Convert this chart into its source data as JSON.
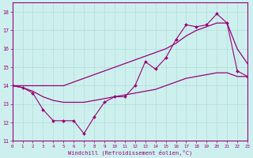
{
  "title": "",
  "xlabel": "Windchill (Refroidissement éolien,°C)",
  "background_color": "#cdf0ee",
  "grid_color": "#b0ddd8",
  "line_color": "#990077",
  "hours": [
    0,
    1,
    2,
    3,
    4,
    5,
    6,
    7,
    8,
    9,
    10,
    11,
    12,
    13,
    14,
    15,
    16,
    17,
    18,
    19,
    20,
    21,
    22,
    23
  ],
  "series_main": [
    14.0,
    13.9,
    13.6,
    12.7,
    12.1,
    12.1,
    12.1,
    11.4,
    12.3,
    13.1,
    13.4,
    13.4,
    14.0,
    15.3,
    14.9,
    15.5,
    16.5,
    17.3,
    17.2,
    17.3,
    17.9,
    17.4,
    14.8,
    14.5
  ],
  "series_low": [
    14.0,
    13.9,
    13.7,
    13.4,
    13.2,
    13.1,
    13.1,
    13.1,
    13.2,
    13.3,
    13.4,
    13.5,
    13.6,
    13.7,
    13.8,
    14.0,
    14.2,
    14.4,
    14.5,
    14.6,
    14.7,
    14.7,
    14.5,
    14.5
  ],
  "series_high": [
    14.0,
    14.0,
    14.0,
    14.0,
    14.0,
    14.0,
    14.2,
    14.4,
    14.6,
    14.8,
    15.0,
    15.2,
    15.4,
    15.6,
    15.8,
    16.0,
    16.3,
    16.7,
    17.0,
    17.2,
    17.4,
    17.4,
    16.0,
    15.2
  ],
  "xlim": [
    0,
    23
  ],
  "ylim": [
    11,
    18.5
  ],
  "xtick_labels": [
    "0",
    "1",
    "2",
    "3",
    "4",
    "5",
    "6",
    "7",
    "8",
    "9",
    "10",
    "11",
    "12",
    "13",
    "14",
    "15",
    "16",
    "17",
    "18",
    "19",
    "20",
    "21",
    "22",
    "23"
  ],
  "yticks": [
    11,
    12,
    13,
    14,
    15,
    16,
    17,
    18
  ]
}
